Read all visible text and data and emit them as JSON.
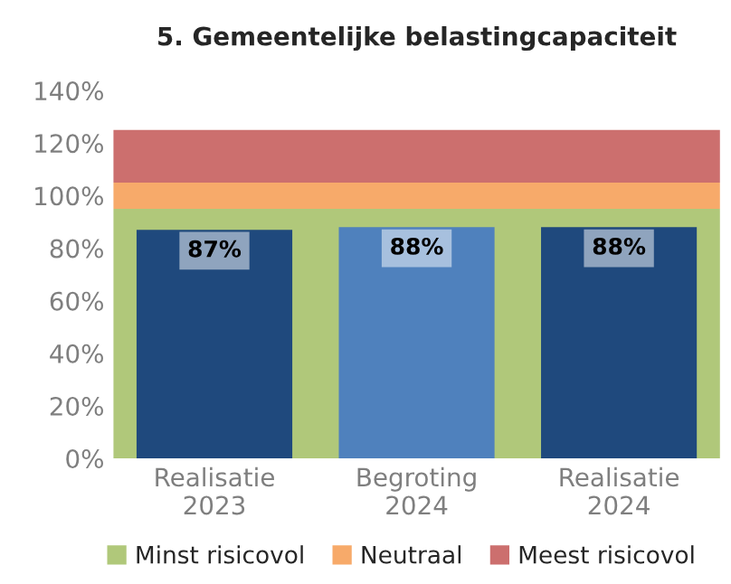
{
  "chart_data": {
    "type": "bar",
    "title": "5. Gemeentelijke belastingcapaciteit",
    "categories": [
      "Realisatie\n2023",
      "Begroting\n2024",
      "Realisatie\n2024"
    ],
    "values": [
      87,
      88,
      88
    ],
    "colors": [
      "#1f497d",
      "#4f81bd",
      "#1f497d"
    ],
    "value_labels": [
      "87%",
      "88%",
      "88%"
    ],
    "ylim": [
      0,
      140
    ],
    "yticks": [
      {
        "value": 0,
        "label": "0%"
      },
      {
        "value": 20,
        "label": "20%"
      },
      {
        "value": 40,
        "label": "40%"
      },
      {
        "value": 60,
        "label": "60%"
      },
      {
        "value": 80,
        "label": "80%"
      },
      {
        "value": 100,
        "label": "100%"
      },
      {
        "value": 120,
        "label": "120%"
      },
      {
        "value": 140,
        "label": "140%"
      }
    ],
    "bands": [
      {
        "axis": "y",
        "from": 0,
        "to": 95,
        "label": "Minst risicovol",
        "color": "#b0c87a"
      },
      {
        "axis": "y",
        "from": 95,
        "to": 105,
        "label": "Neutraal",
        "color": "#f7aa6a"
      },
      {
        "axis": "y",
        "from": 105,
        "to": 125,
        "label": "Meest risicovol",
        "color": "#cc6f6e"
      }
    ],
    "grid": false,
    "legend": "bottom"
  }
}
